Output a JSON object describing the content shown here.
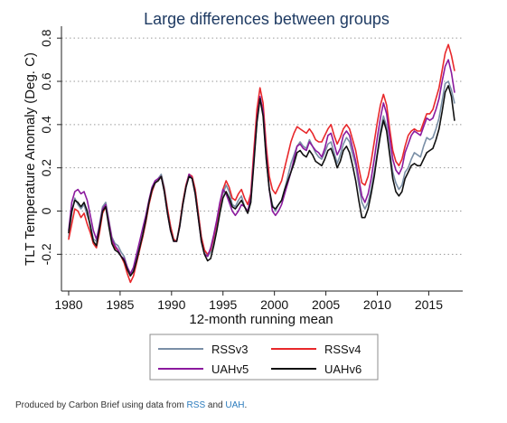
{
  "chart_data": {
    "type": "line",
    "title": "Large differences between groups",
    "xlabel": "12-month running mean",
    "ylabel": "TLT Temperature Anomaly (Deg. C)",
    "xlim": [
      1979.3,
      2018.3
    ],
    "ylim": [
      -0.37,
      0.83
    ],
    "xticks": [
      1980,
      1985,
      1990,
      1995,
      2000,
      2005,
      2010,
      2015
    ],
    "yticks": [
      -0.2,
      0,
      0.2,
      0.4,
      0.6,
      0.8
    ],
    "ytick_labels": [
      "-0.2",
      "0",
      "0.2",
      "0.4",
      "0.6",
      "0.8"
    ],
    "grid": "horizontal dotted",
    "legend_position": "bottom",
    "x": [
      1980.0,
      1980.3,
      1980.6,
      1980.9,
      1981.2,
      1981.5,
      1981.8,
      1982.1,
      1982.4,
      1982.7,
      1983.0,
      1983.3,
      1983.6,
      1983.9,
      1984.2,
      1984.5,
      1984.8,
      1985.1,
      1985.4,
      1985.7,
      1986.0,
      1986.3,
      1986.6,
      1986.9,
      1987.2,
      1987.5,
      1987.8,
      1988.1,
      1988.4,
      1988.7,
      1989.0,
      1989.3,
      1989.6,
      1989.9,
      1990.2,
      1990.5,
      1990.8,
      1991.1,
      1991.4,
      1991.7,
      1992.0,
      1992.3,
      1992.6,
      1992.9,
      1993.2,
      1993.5,
      1993.8,
      1994.1,
      1994.4,
      1994.7,
      1995.0,
      1995.3,
      1995.6,
      1995.9,
      1996.2,
      1996.5,
      1996.8,
      1997.1,
      1997.4,
      1997.7,
      1998.0,
      1998.3,
      1998.6,
      1998.9,
      1999.2,
      1999.5,
      1999.8,
      2000.1,
      2000.4,
      2000.7,
      2001.0,
      2001.3,
      2001.6,
      2001.9,
      2002.2,
      2002.5,
      2002.8,
      2003.1,
      2003.4,
      2003.7,
      2004.0,
      2004.3,
      2004.6,
      2004.9,
      2005.2,
      2005.5,
      2005.8,
      2006.1,
      2006.4,
      2006.7,
      2007.0,
      2007.3,
      2007.6,
      2007.9,
      2008.2,
      2008.5,
      2008.8,
      2009.1,
      2009.4,
      2009.7,
      2010.0,
      2010.3,
      2010.6,
      2010.9,
      2011.2,
      2011.5,
      2011.8,
      2012.1,
      2012.4,
      2012.7,
      2013.0,
      2013.3,
      2013.6,
      2013.9,
      2014.2,
      2014.5,
      2014.8,
      2015.1,
      2015.4,
      2015.7,
      2016.0,
      2016.3,
      2016.6,
      2016.9,
      2017.2,
      2017.5
    ],
    "series": [
      {
        "name": "RSSv3",
        "color": "#7a8fa6",
        "values": [
          -0.12,
          -0.01,
          0.06,
          0.03,
          0.01,
          0.03,
          -0.02,
          -0.06,
          -0.13,
          -0.14,
          -0.06,
          0.02,
          0.04,
          -0.04,
          -0.12,
          -0.15,
          -0.16,
          -0.19,
          -0.21,
          -0.26,
          -0.29,
          -0.27,
          -0.22,
          -0.17,
          -0.12,
          -0.05,
          0.03,
          0.09,
          0.13,
          0.15,
          0.17,
          0.11,
          0.01,
          -0.07,
          -0.13,
          -0.14,
          -0.06,
          0.04,
          0.12,
          0.17,
          0.16,
          0.1,
          -0.01,
          -0.12,
          -0.18,
          -0.21,
          -0.19,
          -0.14,
          -0.07,
          0.01,
          0.08,
          0.12,
          0.09,
          0.03,
          0.02,
          0.05,
          0.07,
          0.02,
          -0.01,
          0.04,
          0.23,
          0.42,
          0.53,
          0.45,
          0.24,
          0.1,
          0.03,
          0.0,
          0.03,
          0.05,
          0.1,
          0.16,
          0.22,
          0.26,
          0.3,
          0.32,
          0.3,
          0.29,
          0.33,
          0.3,
          0.27,
          0.25,
          0.24,
          0.27,
          0.31,
          0.32,
          0.27,
          0.22,
          0.26,
          0.31,
          0.34,
          0.32,
          0.26,
          0.21,
          0.12,
          0.04,
          0.01,
          0.04,
          0.1,
          0.18,
          0.27,
          0.37,
          0.44,
          0.39,
          0.28,
          0.18,
          0.13,
          0.1,
          0.12,
          0.18,
          0.2,
          0.24,
          0.27,
          0.26,
          0.25,
          0.3,
          0.34,
          0.33,
          0.34,
          0.38,
          0.43,
          0.51,
          0.59,
          0.6,
          0.56,
          0.5
        ]
      },
      {
        "name": "RSSv4",
        "color": "#e8282b",
        "values": [
          -0.13,
          -0.06,
          0.01,
          0.0,
          -0.03,
          -0.01,
          -0.06,
          -0.1,
          -0.15,
          -0.17,
          -0.1,
          -0.01,
          0.02,
          -0.05,
          -0.13,
          -0.17,
          -0.18,
          -0.21,
          -0.24,
          -0.29,
          -0.33,
          -0.3,
          -0.24,
          -0.18,
          -0.12,
          -0.05,
          0.03,
          0.09,
          0.13,
          0.14,
          0.16,
          0.1,
          0.01,
          -0.07,
          -0.13,
          -0.14,
          -0.06,
          0.04,
          0.12,
          0.17,
          0.16,
          0.1,
          -0.01,
          -0.12,
          -0.18,
          -0.2,
          -0.18,
          -0.12,
          -0.05,
          0.03,
          0.1,
          0.14,
          0.11,
          0.06,
          0.05,
          0.08,
          0.1,
          0.06,
          0.03,
          0.08,
          0.28,
          0.47,
          0.57,
          0.5,
          0.3,
          0.16,
          0.1,
          0.08,
          0.11,
          0.14,
          0.2,
          0.26,
          0.32,
          0.36,
          0.39,
          0.38,
          0.37,
          0.36,
          0.38,
          0.36,
          0.33,
          0.32,
          0.32,
          0.35,
          0.38,
          0.4,
          0.35,
          0.31,
          0.34,
          0.38,
          0.4,
          0.38,
          0.33,
          0.28,
          0.2,
          0.13,
          0.12,
          0.16,
          0.23,
          0.32,
          0.41,
          0.49,
          0.54,
          0.49,
          0.38,
          0.28,
          0.23,
          0.21,
          0.24,
          0.3,
          0.35,
          0.37,
          0.38,
          0.37,
          0.37,
          0.41,
          0.45,
          0.45,
          0.47,
          0.52,
          0.57,
          0.65,
          0.73,
          0.77,
          0.72,
          0.65
        ]
      },
      {
        "name": "UAHv5",
        "color": "#8b1a9e",
        "values": [
          -0.09,
          0.04,
          0.09,
          0.1,
          0.08,
          0.09,
          0.05,
          -0.02,
          -0.09,
          -0.13,
          -0.07,
          0.01,
          0.03,
          -0.05,
          -0.13,
          -0.16,
          -0.18,
          -0.21,
          -0.22,
          -0.26,
          -0.29,
          -0.26,
          -0.2,
          -0.14,
          -0.08,
          -0.02,
          0.05,
          0.11,
          0.14,
          0.15,
          0.16,
          0.09,
          -0.01,
          -0.09,
          -0.14,
          -0.14,
          -0.07,
          0.03,
          0.11,
          0.17,
          0.15,
          0.08,
          -0.03,
          -0.14,
          -0.2,
          -0.21,
          -0.17,
          -0.11,
          -0.04,
          0.04,
          0.1,
          0.08,
          0.04,
          0.0,
          -0.02,
          0.0,
          0.03,
          0.02,
          0.0,
          0.06,
          0.24,
          0.42,
          0.53,
          0.46,
          0.26,
          0.1,
          0.0,
          -0.02,
          0.0,
          0.03,
          0.08,
          0.13,
          0.18,
          0.24,
          0.3,
          0.31,
          0.29,
          0.28,
          0.32,
          0.3,
          0.28,
          0.27,
          0.25,
          0.29,
          0.35,
          0.36,
          0.31,
          0.26,
          0.29,
          0.35,
          0.37,
          0.35,
          0.29,
          0.23,
          0.15,
          0.07,
          0.04,
          0.08,
          0.15,
          0.24,
          0.34,
          0.43,
          0.5,
          0.45,
          0.34,
          0.24,
          0.19,
          0.17,
          0.2,
          0.27,
          0.31,
          0.35,
          0.37,
          0.36,
          0.35,
          0.39,
          0.43,
          0.42,
          0.43,
          0.47,
          0.52,
          0.6,
          0.67,
          0.7,
          0.64,
          0.55
        ]
      },
      {
        "name": "UAHv6",
        "color": "#111111",
        "values": [
          -0.1,
          0.0,
          0.05,
          0.04,
          0.02,
          0.04,
          0.0,
          -0.07,
          -0.14,
          -0.16,
          -0.08,
          0.0,
          0.02,
          -0.07,
          -0.15,
          -0.18,
          -0.19,
          -0.21,
          -0.23,
          -0.27,
          -0.3,
          -0.28,
          -0.23,
          -0.17,
          -0.11,
          -0.04,
          0.04,
          0.1,
          0.13,
          0.14,
          0.16,
          0.09,
          -0.01,
          -0.09,
          -0.14,
          -0.14,
          -0.07,
          0.03,
          0.11,
          0.16,
          0.15,
          0.08,
          -0.03,
          -0.14,
          -0.2,
          -0.23,
          -0.22,
          -0.16,
          -0.09,
          -0.01,
          0.06,
          0.09,
          0.06,
          0.02,
          0.01,
          0.03,
          0.05,
          0.02,
          -0.01,
          0.04,
          0.22,
          0.41,
          0.52,
          0.44,
          0.24,
          0.1,
          0.02,
          0.01,
          0.03,
          0.05,
          0.1,
          0.14,
          0.18,
          0.22,
          0.27,
          0.28,
          0.26,
          0.25,
          0.28,
          0.26,
          0.23,
          0.22,
          0.21,
          0.24,
          0.28,
          0.29,
          0.25,
          0.2,
          0.23,
          0.28,
          0.3,
          0.27,
          0.21,
          0.14,
          0.05,
          -0.03,
          -0.03,
          0.01,
          0.08,
          0.16,
          0.26,
          0.35,
          0.42,
          0.37,
          0.26,
          0.15,
          0.09,
          0.07,
          0.09,
          0.15,
          0.18,
          0.21,
          0.22,
          0.21,
          0.21,
          0.24,
          0.27,
          0.28,
          0.29,
          0.33,
          0.38,
          0.46,
          0.55,
          0.58,
          0.53,
          0.42
        ]
      }
    ]
  },
  "footer": {
    "text_before": "Produced by Carbon Brief using data from ",
    "link1": "RSS",
    "text_middle": " and ",
    "link2": "UAH",
    "text_after": "."
  }
}
